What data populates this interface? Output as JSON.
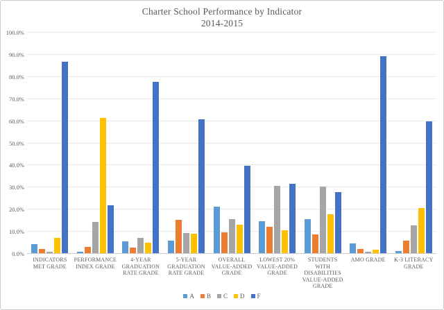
{
  "chart_data": {
    "type": "bar",
    "title": "Charter School Performance by Indicator",
    "subtitle": "2014-2015",
    "categories": [
      "INDICATORS MET GRADE",
      "PERFORMANCE INDEX GRADE",
      "4-YEAR GRADUATION RATE GRADE",
      "5-YEAR GRADUATION RATE GRADE",
      "OVERALL VALUE-ADDED GRADE",
      "LOWEST 20% VALUE-ADDED GRADE",
      "STUDENTS WITH DISABILITIES VALUE-ADDED GRADE",
      "AMO GRADE",
      "K-3 LITERACY GRADE"
    ],
    "series": [
      {
        "name": "A",
        "color": "#5B9BD5",
        "values": [
          4.0,
          0.6,
          5.3,
          5.5,
          21.0,
          14.5,
          15.5,
          4.5,
          1.0
        ]
      },
      {
        "name": "B",
        "color": "#ED7D31",
        "values": [
          2.0,
          2.8,
          2.5,
          15.0,
          9.5,
          12.0,
          8.5,
          2.0,
          5.7
        ]
      },
      {
        "name": "C",
        "color": "#A5A5A5",
        "values": [
          0.5,
          14.0,
          7.0,
          9.0,
          15.5,
          30.5,
          30.0,
          0.7,
          12.5
        ]
      },
      {
        "name": "D",
        "color": "#FFC000",
        "values": [
          7.0,
          61.0,
          4.7,
          8.8,
          13.0,
          10.5,
          17.5,
          1.7,
          20.5
        ]
      },
      {
        "name": "F",
        "color": "#4472C4",
        "values": [
          86.5,
          21.5,
          77.5,
          60.5,
          39.5,
          31.5,
          27.5,
          89.0,
          59.5
        ]
      }
    ],
    "ylim": [
      0,
      100
    ],
    "ytick_step": 10,
    "grid": true,
    "legend_position": "bottom"
  },
  "y_axis": {
    "ticks": [
      {
        "label": "100.0%",
        "value": 100
      },
      {
        "label": "90.0%",
        "value": 90
      },
      {
        "label": "80.0%",
        "value": 80
      },
      {
        "label": "70.0%",
        "value": 70
      },
      {
        "label": "60.0%",
        "value": 60
      },
      {
        "label": "50.0%",
        "value": 50
      },
      {
        "label": "40.0%",
        "value": 40
      },
      {
        "label": "30.0%",
        "value": 30
      },
      {
        "label": "20.0%",
        "value": 20
      },
      {
        "label": "10.0%",
        "value": 10
      },
      {
        "label": "0.0%",
        "value": 0
      }
    ]
  },
  "legend": {
    "items": [
      {
        "label": "A",
        "color": "#5B9BD5"
      },
      {
        "label": "B",
        "color": "#ED7D31"
      },
      {
        "label": "C",
        "color": "#A5A5A5"
      },
      {
        "label": "D",
        "color": "#FFC000"
      },
      {
        "label": "F",
        "color": "#4472C4"
      }
    ]
  },
  "style": {
    "text_color": "#595959",
    "gridline_color": "#e9e9e9",
    "axis_line_color": "#c9c9c9"
  }
}
